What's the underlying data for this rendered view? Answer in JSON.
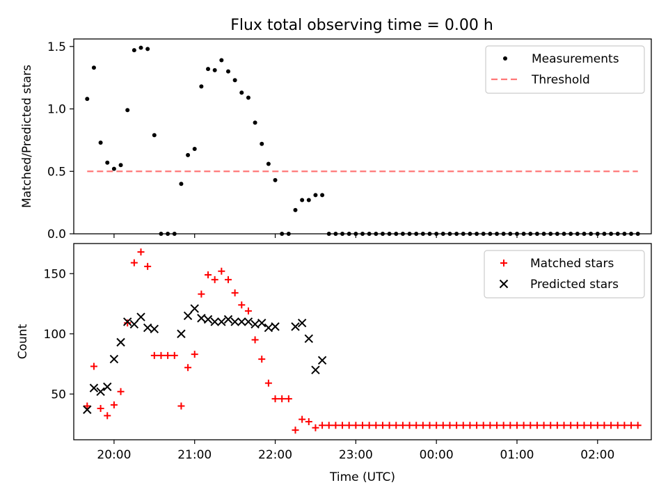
{
  "title": "Flux total observing time = 0.00 h",
  "chart_data": [
    {
      "type": "scatter",
      "ylabel": "Matched/Predicted stars",
      "xlabel": "",
      "ylim": [
        0,
        1.56
      ],
      "xlim": [
        "19:30",
        "02:40"
      ],
      "yticks": [
        0.0,
        0.5,
        1.0,
        1.5
      ],
      "ytick_labels": [
        "0.0",
        "0.5",
        "1.0",
        "1.5"
      ],
      "grid": false,
      "legend": "top-right",
      "series": [
        {
          "name": "Measurements",
          "style": "dot",
          "color": "#000000",
          "points": [
            [
              "19:40",
              1.08
            ],
            [
              "19:45",
              1.33
            ],
            [
              "19:50",
              0.73
            ],
            [
              "19:55",
              0.57
            ],
            [
              "20:00",
              0.52
            ],
            [
              "20:05",
              0.55
            ],
            [
              "20:10",
              0.99
            ],
            [
              "20:15",
              1.47
            ],
            [
              "20:20",
              1.49
            ],
            [
              "20:25",
              1.48
            ],
            [
              "20:30",
              0.79
            ],
            [
              "20:35",
              0.0
            ],
            [
              "20:40",
              0.0
            ],
            [
              "20:45",
              0.0
            ],
            [
              "20:50",
              0.4
            ],
            [
              "20:55",
              0.63
            ],
            [
              "21:00",
              0.68
            ],
            [
              "21:05",
              1.18
            ],
            [
              "21:10",
              1.32
            ],
            [
              "21:15",
              1.31
            ],
            [
              "21:20",
              1.39
            ],
            [
              "21:25",
              1.3
            ],
            [
              "21:30",
              1.23
            ],
            [
              "21:35",
              1.13
            ],
            [
              "21:40",
              1.09
            ],
            [
              "21:45",
              0.89
            ],
            [
              "21:50",
              0.72
            ],
            [
              "21:55",
              0.56
            ],
            [
              "22:00",
              0.43
            ],
            [
              "22:05",
              0.0
            ],
            [
              "22:10",
              0.0
            ],
            [
              "22:15",
              0.19
            ],
            [
              "22:20",
              0.27
            ],
            [
              "22:25",
              0.27
            ],
            [
              "22:30",
              0.31
            ],
            [
              "22:35",
              0.31
            ],
            [
              "22:40",
              0.0
            ],
            [
              "22:45",
              0.0
            ],
            [
              "22:50",
              0.0
            ],
            [
              "22:55",
              0.0
            ],
            [
              "23:00",
              0.0
            ],
            [
              "23:05",
              0.0
            ],
            [
              "23:10",
              0.0
            ],
            [
              "23:15",
              0.0
            ],
            [
              "23:20",
              0.0
            ],
            [
              "23:25",
              0.0
            ],
            [
              "23:30",
              0.0
            ],
            [
              "23:35",
              0.0
            ],
            [
              "23:40",
              0.0
            ],
            [
              "23:45",
              0.0
            ],
            [
              "23:50",
              0.0
            ],
            [
              "23:55",
              0.0
            ],
            [
              "00:00",
              0.0
            ],
            [
              "00:05",
              0.0
            ],
            [
              "00:10",
              0.0
            ],
            [
              "00:15",
              0.0
            ],
            [
              "00:20",
              0.0
            ],
            [
              "00:25",
              0.0
            ],
            [
              "00:30",
              0.0
            ],
            [
              "00:35",
              0.0
            ],
            [
              "00:40",
              0.0
            ],
            [
              "00:45",
              0.0
            ],
            [
              "00:50",
              0.0
            ],
            [
              "00:55",
              0.0
            ],
            [
              "01:00",
              0.0
            ],
            [
              "01:05",
              0.0
            ],
            [
              "01:10",
              0.0
            ],
            [
              "01:15",
              0.0
            ],
            [
              "01:20",
              0.0
            ],
            [
              "01:25",
              0.0
            ],
            [
              "01:30",
              0.0
            ],
            [
              "01:35",
              0.0
            ],
            [
              "01:40",
              0.0
            ],
            [
              "01:45",
              0.0
            ],
            [
              "01:50",
              0.0
            ],
            [
              "01:55",
              0.0
            ],
            [
              "02:00",
              0.0
            ],
            [
              "02:05",
              0.0
            ],
            [
              "02:10",
              0.0
            ],
            [
              "02:15",
              0.0
            ],
            [
              "02:20",
              0.0
            ],
            [
              "02:25",
              0.0
            ],
            [
              "02:30",
              0.0
            ]
          ]
        },
        {
          "name": "Threshold",
          "style": "dashed-line",
          "color": "#ff7777",
          "points": [
            [
              "19:40",
              0.5
            ],
            [
              "02:30",
              0.5
            ]
          ]
        }
      ]
    },
    {
      "type": "scatter",
      "ylabel": "Count",
      "xlabel": "Time (UTC)",
      "ylim": [
        12,
        175
      ],
      "xlim": [
        "19:30",
        "02:40"
      ],
      "yticks": [
        50,
        100,
        150
      ],
      "ytick_labels": [
        "50",
        "100",
        "150"
      ],
      "xtick_labels": [
        "20:00",
        "21:00",
        "22:00",
        "23:00",
        "00:00",
        "01:00",
        "02:00"
      ],
      "grid": false,
      "legend": "top-right",
      "series": [
        {
          "name": "Matched stars",
          "style": "plus",
          "color": "#ff0000",
          "points": [
            [
              "19:40",
              40
            ],
            [
              "19:45",
              73
            ],
            [
              "19:50",
              38
            ],
            [
              "19:55",
              32
            ],
            [
              "20:00",
              41
            ],
            [
              "20:05",
              52
            ],
            [
              "20:10",
              109
            ],
            [
              "20:15",
              159
            ],
            [
              "20:20",
              168
            ],
            [
              "20:25",
              156
            ],
            [
              "20:30",
              82
            ],
            [
              "20:35",
              82
            ],
            [
              "20:40",
              82
            ],
            [
              "20:45",
              82
            ],
            [
              "20:50",
              40
            ],
            [
              "20:55",
              72
            ],
            [
              "21:00",
              83
            ],
            [
              "21:05",
              133
            ],
            [
              "21:10",
              149
            ],
            [
              "21:15",
              145
            ],
            [
              "21:20",
              152
            ],
            [
              "21:25",
              145
            ],
            [
              "21:30",
              134
            ],
            [
              "21:35",
              124
            ],
            [
              "21:40",
              119
            ],
            [
              "21:45",
              95
            ],
            [
              "21:50",
              79
            ],
            [
              "21:55",
              59
            ],
            [
              "22:00",
              46
            ],
            [
              "22:05",
              46
            ],
            [
              "22:10",
              46
            ],
            [
              "22:15",
              20
            ],
            [
              "22:20",
              29
            ],
            [
              "22:25",
              27
            ],
            [
              "22:30",
              22
            ],
            [
              "22:35",
              24
            ],
            [
              "22:40",
              24
            ],
            [
              "22:45",
              24
            ],
            [
              "22:50",
              24
            ],
            [
              "22:55",
              24
            ],
            [
              "23:00",
              24
            ],
            [
              "23:05",
              24
            ],
            [
              "23:10",
              24
            ],
            [
              "23:15",
              24
            ],
            [
              "23:20",
              24
            ],
            [
              "23:25",
              24
            ],
            [
              "23:30",
              24
            ],
            [
              "23:35",
              24
            ],
            [
              "23:40",
              24
            ],
            [
              "23:45",
              24
            ],
            [
              "23:50",
              24
            ],
            [
              "23:55",
              24
            ],
            [
              "00:00",
              24
            ],
            [
              "00:05",
              24
            ],
            [
              "00:10",
              24
            ],
            [
              "00:15",
              24
            ],
            [
              "00:20",
              24
            ],
            [
              "00:25",
              24
            ],
            [
              "00:30",
              24
            ],
            [
              "00:35",
              24
            ],
            [
              "00:40",
              24
            ],
            [
              "00:45",
              24
            ],
            [
              "00:50",
              24
            ],
            [
              "00:55",
              24
            ],
            [
              "01:00",
              24
            ],
            [
              "01:05",
              24
            ],
            [
              "01:10",
              24
            ],
            [
              "01:15",
              24
            ],
            [
              "01:20",
              24
            ],
            [
              "01:25",
              24
            ],
            [
              "01:30",
              24
            ],
            [
              "01:35",
              24
            ],
            [
              "01:40",
              24
            ],
            [
              "01:45",
              24
            ],
            [
              "01:50",
              24
            ],
            [
              "01:55",
              24
            ],
            [
              "02:00",
              24
            ],
            [
              "02:05",
              24
            ],
            [
              "02:10",
              24
            ],
            [
              "02:15",
              24
            ],
            [
              "02:20",
              24
            ],
            [
              "02:25",
              24
            ],
            [
              "02:30",
              24
            ]
          ]
        },
        {
          "name": "Predicted stars",
          "style": "x",
          "color": "#000000",
          "points": [
            [
              "19:40",
              37
            ],
            [
              "19:45",
              55
            ],
            [
              "19:50",
              52
            ],
            [
              "19:55",
              56
            ],
            [
              "20:00",
              79
            ],
            [
              "20:05",
              93
            ],
            [
              "20:10",
              110
            ],
            [
              "20:15",
              108
            ],
            [
              "20:20",
              114
            ],
            [
              "20:25",
              105
            ],
            [
              "20:30",
              104
            ],
            [
              "20:50",
              100
            ],
            [
              "20:55",
              115
            ],
            [
              "21:00",
              121
            ],
            [
              "21:05",
              113
            ],
            [
              "21:10",
              112
            ],
            [
              "21:15",
              110
            ],
            [
              "21:20",
              110
            ],
            [
              "21:25",
              112
            ],
            [
              "21:30",
              110
            ],
            [
              "21:35",
              110
            ],
            [
              "21:40",
              110
            ],
            [
              "21:45",
              108
            ],
            [
              "21:50",
              109
            ],
            [
              "21:55",
              105
            ],
            [
              "22:00",
              106
            ],
            [
              "22:15",
              106
            ],
            [
              "22:20",
              109
            ],
            [
              "22:25",
              96
            ],
            [
              "22:30",
              70
            ],
            [
              "22:35",
              78
            ]
          ]
        }
      ]
    }
  ]
}
